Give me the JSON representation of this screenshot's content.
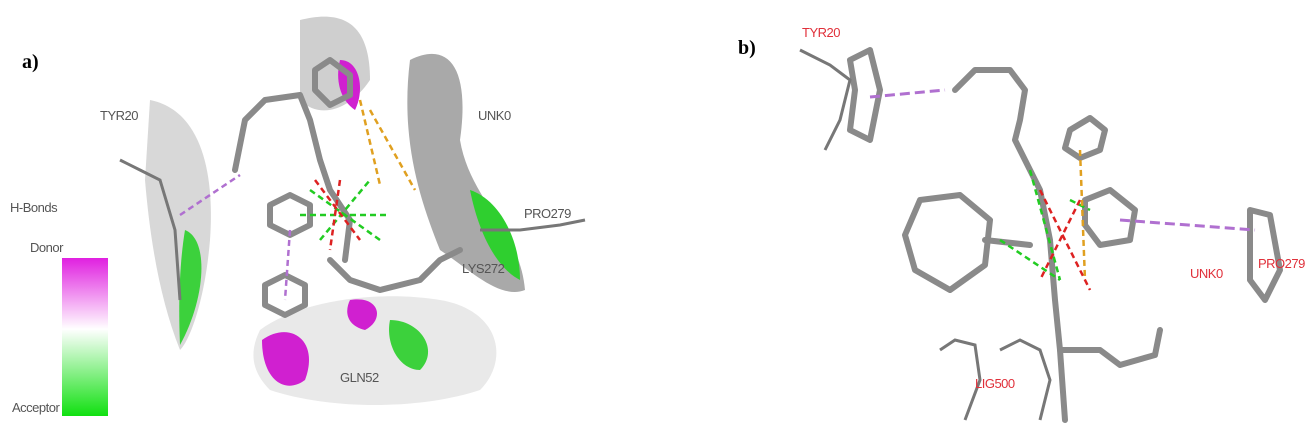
{
  "panel_a": {
    "label": "a)",
    "residues": [
      "TYR20",
      "UNK0",
      "PRO279",
      "LYS272",
      "GLN52"
    ],
    "legend": {
      "title": "H-Bonds",
      "donor": "Donor",
      "acceptor": "Acceptor"
    }
  },
  "panel_b": {
    "label": "b)",
    "residues": [
      "TYR20",
      "UNK0",
      "PRO279",
      "LIG500"
    ]
  }
}
